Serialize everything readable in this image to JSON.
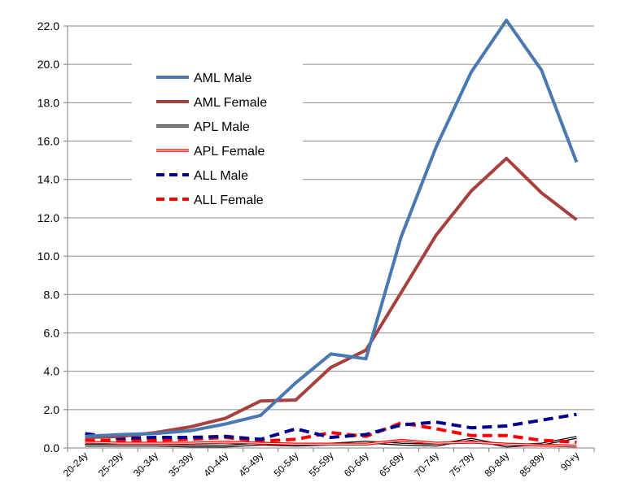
{
  "chart_data": {
    "type": "line",
    "title": "",
    "xlabel": "",
    "ylabel": "",
    "categories": [
      "20-24y",
      "25-29y",
      "30-34y",
      "35-39y",
      "40-44y",
      "45-49y",
      "50-54y",
      "55-59y",
      "60-64y",
      "65-69y",
      "70-74y",
      "75-79y",
      "80-84y",
      "85-89y",
      "90+y"
    ],
    "ylim": [
      0,
      22
    ],
    "yticks": [
      "0.0",
      "2.0",
      "4.0",
      "6.0",
      "8.0",
      "10.0",
      "12.0",
      "14.0",
      "16.0",
      "18.0",
      "20.0",
      "22.0"
    ],
    "grid": "horizontal",
    "legend": "top-left",
    "series": [
      {
        "name": "AML Male",
        "color": "#4A78B0",
        "style": "solid",
        "values": [
          0.6,
          0.7,
          0.75,
          0.9,
          1.25,
          1.7,
          3.4,
          4.9,
          4.65,
          11.0,
          15.7,
          19.6,
          22.3,
          19.7,
          14.9
        ]
      },
      {
        "name": "AML Female",
        "color": "#A5423F",
        "style": "solid",
        "values": [
          0.55,
          0.6,
          0.8,
          1.1,
          1.55,
          2.45,
          2.5,
          4.2,
          5.1,
          8.1,
          11.1,
          13.4,
          15.1,
          13.3,
          11.9
        ]
      },
      {
        "name": "APL Male",
        "color": "#000000",
        "style": "double",
        "values": [
          0.15,
          0.15,
          0.15,
          0.1,
          0.1,
          0.2,
          0.15,
          0.2,
          0.3,
          0.2,
          0.15,
          0.45,
          0.1,
          0.2,
          0.55
        ]
      },
      {
        "name": "APL Female",
        "color": "#FF0000",
        "style": "double",
        "values": [
          0.3,
          0.25,
          0.25,
          0.25,
          0.3,
          0.25,
          0.2,
          0.2,
          0.2,
          0.4,
          0.25,
          0.3,
          0.2,
          0.15,
          0.1
        ]
      },
      {
        "name": "ALL Male",
        "color": "#00008B",
        "style": "dashed",
        "values": [
          0.75,
          0.5,
          0.55,
          0.55,
          0.6,
          0.45,
          1.0,
          0.55,
          0.7,
          1.2,
          1.35,
          1.05,
          1.15,
          1.45,
          1.75
        ]
      },
      {
        "name": "ALL Female",
        "color": "#FF0000",
        "style": "dashed",
        "values": [
          0.4,
          0.4,
          0.4,
          0.45,
          0.55,
          0.35,
          0.45,
          0.8,
          0.6,
          1.3,
          1.0,
          0.65,
          0.65,
          0.4,
          0.3
        ]
      }
    ]
  }
}
